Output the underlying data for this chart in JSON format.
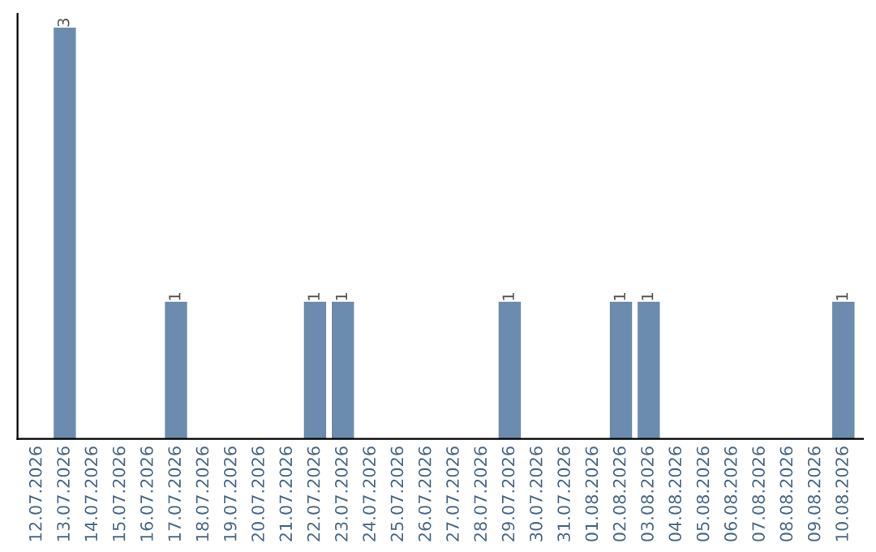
{
  "chart_data": {
    "type": "bar",
    "categories": [
      "12.07.2026",
      "13.07.2026",
      "14.07.2026",
      "15.07.2026",
      "16.07.2026",
      "17.07.2026",
      "18.07.2026",
      "19.07.2026",
      "20.07.2026",
      "21.07.2026",
      "22.07.2026",
      "23.07.2026",
      "24.07.2026",
      "25.07.2026",
      "26.07.2026",
      "27.07.2026",
      "28.07.2026",
      "29.07.2026",
      "30.07.2026",
      "31.07.2026",
      "01.08.2026",
      "02.08.2026",
      "03.08.2026",
      "04.08.2026",
      "05.08.2026",
      "06.08.2026",
      "07.08.2026",
      "08.08.2026",
      "09.08.2026",
      "10.08.2026"
    ],
    "values": [
      0,
      3,
      0,
      0,
      0,
      1,
      0,
      0,
      0,
      0,
      1,
      1,
      0,
      0,
      0,
      0,
      0,
      1,
      0,
      0,
      0,
      1,
      1,
      0,
      0,
      0,
      0,
      0,
      0,
      1
    ],
    "value_labels": [
      null,
      "3",
      null,
      null,
      null,
      "1",
      null,
      null,
      null,
      null,
      "1",
      "1",
      null,
      null,
      null,
      null,
      null,
      "1",
      null,
      null,
      null,
      "1",
      "1",
      null,
      null,
      null,
      null,
      null,
      null,
      "1"
    ],
    "color": "#6b8cae",
    "ylim": [
      0,
      3.1
    ],
    "tick_labels": "x",
    "grid": false,
    "legend": false
  }
}
